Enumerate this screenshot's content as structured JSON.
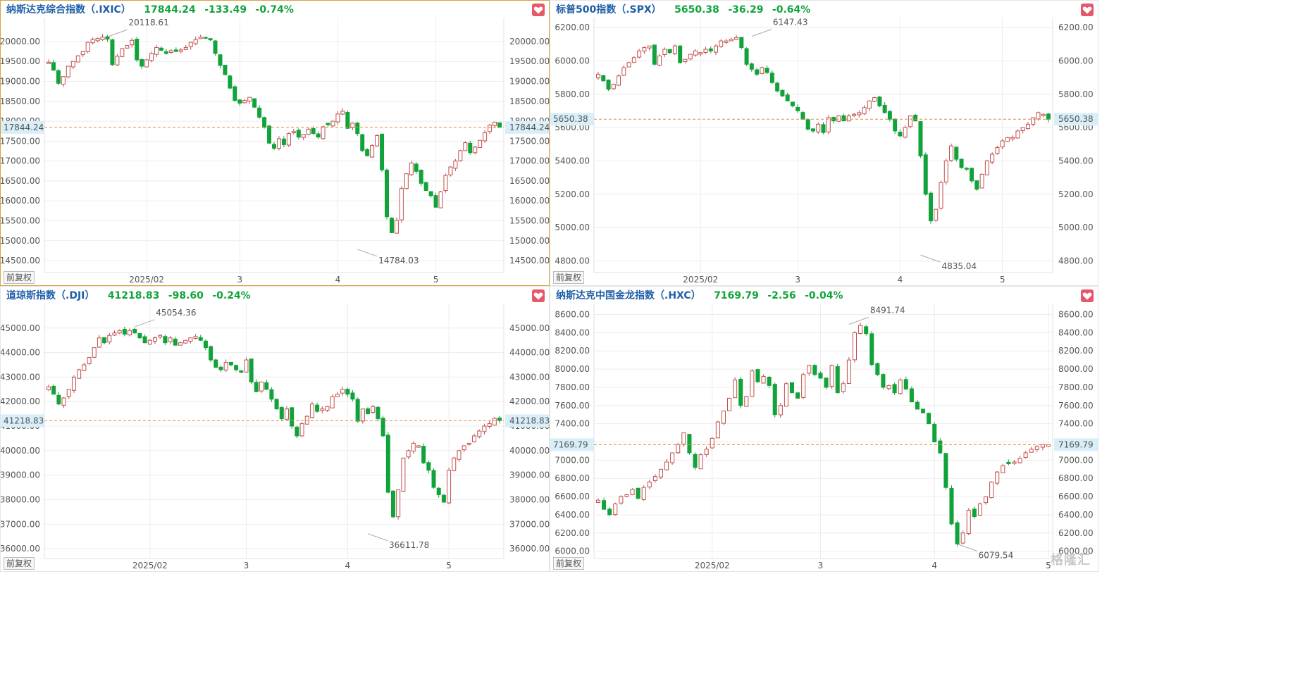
{
  "fuquan_label": "前复权",
  "watermark": "格隆汇",
  "colors": {
    "up": "#c0504d",
    "down": "#11a33a",
    "accent_line": "#e08a3a",
    "badge_bg": "#d8eef8"
  },
  "panels": [
    {
      "header": {
        "name": "纳斯达克综合指数（.IXIC）",
        "price": "17844.24",
        "change": "-133.49",
        "pct": "-0.74%"
      },
      "current_label": "17844.24",
      "high_label": "20118.61",
      "low_label": "14784.03",
      "chart_data": {
        "type": "candlestick",
        "ylim": [
          14200,
          20600
        ],
        "y_ticks": [
          "20000.00",
          "19500.00",
          "19000.00",
          "18500.00",
          "18000.00",
          "17500.00",
          "17000.00",
          "16500.00",
          "16000.00",
          "15500.00",
          "15000.00",
          "14500.00"
        ],
        "x_ticks": [
          {
            "label": "2025/02",
            "i": 20
          },
          {
            "label": "3",
            "i": 39
          },
          {
            "label": "4",
            "i": 59
          },
          {
            "label": "5",
            "i": 79
          }
        ],
        "current": 17844.24,
        "high": {
          "value": 20118.61,
          "i": 12
        },
        "low": {
          "value": 14784.03,
          "i": 63
        },
        "closes": [
          19480,
          19280,
          18950,
          19120,
          19380,
          19500,
          19640,
          19750,
          19980,
          20050,
          20080,
          20110,
          20060,
          19420,
          19630,
          19820,
          19900,
          20030,
          19540,
          19380,
          19540,
          19700,
          19850,
          19780,
          19700,
          19770,
          19750,
          19790,
          19850,
          19980,
          20050,
          20110,
          20080,
          20040,
          19700,
          19400,
          19170,
          18830,
          18520,
          18450,
          18520,
          18600,
          18350,
          18100,
          17850,
          17450,
          17320,
          17560,
          17410,
          17690,
          17740,
          17600,
          17670,
          17800,
          17690,
          17600,
          17860,
          17910,
          18000,
          18180,
          18250,
          17820,
          17950,
          17690,
          17260,
          17130,
          17390,
          17640,
          16780,
          15600,
          15200,
          15510,
          16310,
          16680,
          16950,
          16740,
          16440,
          16260,
          16130,
          15840,
          16230,
          16640,
          16850,
          17000,
          17260,
          17460,
          17210,
          17350,
          17520,
          17710,
          17900,
          17976,
          17844
        ]
      }
    },
    {
      "header": {
        "name": "标普500指数（.SPX）",
        "price": "5650.38",
        "change": "-36.29",
        "pct": "-0.64%"
      },
      "current_label": "5650.38",
      "high_label": "6147.43",
      "low_label": "4835.04",
      "chart_data": {
        "type": "candlestick",
        "ylim": [
          4730,
          6260
        ],
        "y_ticks": [
          "6200.00",
          "6000.00",
          "5800.00",
          "5600.00",
          "5400.00",
          "5200.00",
          "5000.00",
          "4800.00"
        ],
        "x_ticks": [
          {
            "label": "2025/02",
            "i": 20
          },
          {
            "label": "3",
            "i": 39
          },
          {
            "label": "4",
            "i": 59
          },
          {
            "label": "5",
            "i": 79
          }
        ],
        "current": 5650.38,
        "high": {
          "value": 6147.43,
          "i": 30
        },
        "low": {
          "value": 4835.04,
          "i": 63
        },
        "closes": [
          5920,
          5880,
          5830,
          5860,
          5910,
          5960,
          5990,
          6020,
          6060,
          6080,
          6090,
          5980,
          6030,
          6070,
          6050,
          6090,
          5990,
          6010,
          6040,
          6060,
          6050,
          6070,
          6060,
          6090,
          6120,
          6120,
          6130,
          6140,
          6080,
          5980,
          5950,
          5920,
          5960,
          5930,
          5870,
          5820,
          5790,
          5760,
          5730,
          5700,
          5650,
          5590,
          5580,
          5620,
          5570,
          5660,
          5640,
          5670,
          5640,
          5670,
          5680,
          5690,
          5720,
          5760,
          5780,
          5730,
          5690,
          5650,
          5580,
          5550,
          5600,
          5670,
          5640,
          5430,
          5200,
          5040,
          5110,
          5270,
          5400,
          5490,
          5410,
          5360,
          5350,
          5280,
          5230,
          5320,
          5400,
          5440,
          5480,
          5520,
          5540,
          5540,
          5580,
          5600,
          5620,
          5660,
          5690,
          5680,
          5650
        ]
      }
    },
    {
      "header": {
        "name": "道琼斯指数（.DJI）",
        "price": "41218.83",
        "change": "-98.60",
        "pct": "-0.24%"
      },
      "current_label": "41218.83",
      "high_label": "45054.36",
      "low_label": "36611.78",
      "chart_data": {
        "type": "candlestick",
        "ylim": [
          35600,
          46000
        ],
        "y_ticks": [
          "45000.00",
          "44000.00",
          "43000.00",
          "42000.00",
          "41000.00",
          "40000.00",
          "39000.00",
          "38000.00",
          "37000.00",
          "36000.00"
        ],
        "x_ticks": [
          {
            "label": "2025/02",
            "i": 20
          },
          {
            "label": "3",
            "i": 39
          },
          {
            "label": "4",
            "i": 59
          },
          {
            "label": "5",
            "i": 79
          }
        ],
        "current": 41218.83,
        "high": {
          "value": 45054.36,
          "i": 17
        },
        "low": {
          "value": 36611.78,
          "i": 63
        },
        "closes": [
          42600,
          42300,
          41900,
          42150,
          42500,
          43000,
          43300,
          43500,
          43800,
          44200,
          44600,
          44400,
          44700,
          44800,
          44900,
          44750,
          44900,
          44800,
          44600,
          44400,
          44500,
          44600,
          44700,
          44400,
          44600,
          44300,
          44400,
          44500,
          44600,
          44650,
          44500,
          44200,
          43700,
          43400,
          43300,
          43600,
          43500,
          43300,
          43200,
          43700,
          42800,
          42400,
          42800,
          42500,
          42100,
          41700,
          41300,
          41700,
          41000,
          40600,
          41100,
          41400,
          41900,
          41600,
          41700,
          41800,
          42200,
          42300,
          42500,
          42300,
          42100,
          41200,
          41700,
          41500,
          41800,
          41300,
          40600,
          38300,
          37300,
          38400,
          39700,
          40000,
          40300,
          40200,
          39500,
          39200,
          38500,
          38200,
          37900,
          39200,
          39700,
          40000,
          40200,
          40300,
          40600,
          40800,
          41000,
          41100,
          41317,
          41219
        ]
      }
    },
    {
      "header": {
        "name": "纳斯达克中国金龙指数（.HXC）",
        "price": "7169.79",
        "change": "-2.56",
        "pct": "-0.04%"
      },
      "current_label": "7169.79",
      "high_label": "8491.74",
      "low_label": "6079.54",
      "chart_data": {
        "type": "candlestick",
        "ylim": [
          5920,
          8720
        ],
        "y_ticks": [
          "8600.00",
          "8400.00",
          "8200.00",
          "8000.00",
          "7800.00",
          "7600.00",
          "7400.00",
          "7200.00",
          "7000.00",
          "6800.00",
          "6600.00",
          "6400.00",
          "6200.00",
          "6000.00"
        ],
        "x_ticks": [
          {
            "label": "2025/02",
            "i": 20
          },
          {
            "label": "3",
            "i": 39
          },
          {
            "label": "4",
            "i": 59
          },
          {
            "label": "5",
            "i": 79
          }
        ],
        "current": 7169.79,
        "high": {
          "value": 8491.74,
          "i": 44
        },
        "low": {
          "value": 6079.54,
          "i": 63
        },
        "closes": [
          6560,
          6460,
          6400,
          6520,
          6600,
          6620,
          6680,
          6580,
          6700,
          6760,
          6820,
          6900,
          6980,
          7080,
          7170,
          7300,
          7080,
          6920,
          7060,
          7120,
          7240,
          7420,
          7540,
          7680,
          7880,
          7600,
          7700,
          7980,
          7860,
          7920,
          7820,
          7500,
          7600,
          7840,
          7740,
          7680,
          7940,
          8040,
          7940,
          7900,
          7800,
          8040,
          7740,
          7840,
          8100,
          8400,
          8480,
          8390,
          8050,
          7940,
          7800,
          7820,
          7740,
          7880,
          7780,
          7640,
          7560,
          7520,
          7400,
          7200,
          7080,
          6700,
          6300,
          6080,
          6200,
          6450,
          6380,
          6520,
          6600,
          6760,
          6870,
          6940,
          6960,
          6980,
          7020,
          7080,
          7120,
          7150,
          7172,
          7170
        ]
      }
    }
  ]
}
